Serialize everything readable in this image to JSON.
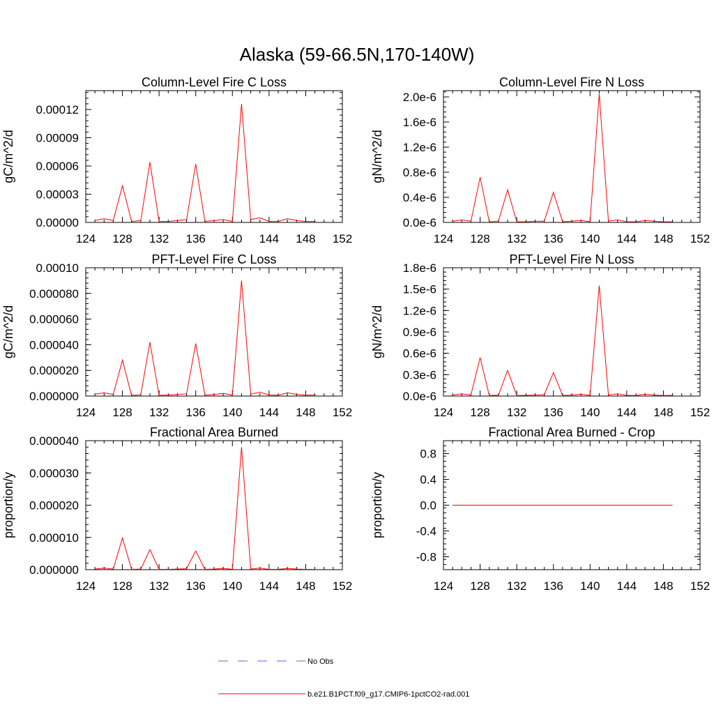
{
  "title": "Alaska (59-66.5N,170-140W)",
  "colors": {
    "model": "#ff0000",
    "obs": "#6666cc",
    "axis": "#000000"
  },
  "legend": {
    "obs_label": "No Obs",
    "model_label": "b.e21.B1PCT.f09_g17.CMIP6-1pctCO2-rad.001"
  },
  "chart_data": [
    {
      "type": "line",
      "title": "Column-Level Fire C Loss",
      "ylabel": "gC/m^2/d",
      "xlim": [
        124,
        152
      ],
      "ylim": [
        0,
        0.00014
      ],
      "x_ticks": [
        "124",
        "128",
        "132",
        "136",
        "140",
        "144",
        "148",
        "152"
      ],
      "y_ticks": [
        {
          "value": 0.0,
          "label": "0.00000"
        },
        {
          "value": 3e-05,
          "label": "0.00003"
        },
        {
          "value": 6e-05,
          "label": "0.00006"
        },
        {
          "value": 9e-05,
          "label": "0.00009"
        },
        {
          "value": 0.00012,
          "label": "0.00012"
        }
      ],
      "series": [
        {
          "name": "b.e21.B1PCT.f09_g17.CMIP6-1pctCO2-rad.001",
          "x": [
            125,
            126,
            127,
            128,
            129,
            130,
            131,
            132,
            133,
            134,
            135,
            136,
            137,
            138,
            139,
            140,
            141,
            142,
            143,
            144,
            145,
            146,
            147,
            148,
            149
          ],
          "y": [
            2e-06,
            4e-06,
            2e-06,
            3.9e-05,
            1e-06,
            2e-06,
            6.4e-05,
            1e-06,
            1e-06,
            2e-06,
            3e-06,
            6.2e-05,
            1e-06,
            2e-06,
            3e-06,
            1e-06,
            0.000126,
            3e-06,
            5e-06,
            1e-06,
            1e-06,
            4e-06,
            2e-06,
            1e-06,
            1e-06
          ]
        }
      ]
    },
    {
      "type": "line",
      "title": "Column-Level Fire N Loss",
      "ylabel": "gN/m^2/d",
      "xlim": [
        124,
        152
      ],
      "ylim": [
        0,
        2.1e-06
      ],
      "x_ticks": [
        "124",
        "128",
        "132",
        "136",
        "140",
        "144",
        "148",
        "152"
      ],
      "y_ticks": [
        {
          "value": 0.0,
          "label": "0.0e-6"
        },
        {
          "value": 4e-07,
          "label": "0.4e-6"
        },
        {
          "value": 8e-07,
          "label": "0.8e-6"
        },
        {
          "value": 1.2e-06,
          "label": "1.2e-6"
        },
        {
          "value": 1.6e-06,
          "label": "1.6e-6"
        },
        {
          "value": 2e-06,
          "label": "2.0e-6"
        }
      ],
      "series": [
        {
          "name": "b.e21.B1PCT.f09_g17.CMIP6-1pctCO2-rad.001",
          "x": [
            125,
            126,
            127,
            128,
            129,
            130,
            131,
            132,
            133,
            134,
            135,
            136,
            137,
            138,
            139,
            140,
            141,
            142,
            143,
            144,
            145,
            146,
            147,
            148,
            149
          ],
          "y": [
            2e-08,
            4e-08,
            2e-08,
            7.2e-07,
            1e-08,
            2e-08,
            5.2e-07,
            1e-08,
            1e-08,
            2e-08,
            2e-08,
            4.8e-07,
            1e-08,
            2e-08,
            3e-08,
            1e-08,
            2.05e-06,
            2e-08,
            4e-08,
            1e-08,
            1e-08,
            3e-08,
            2e-08,
            1e-08,
            1e-08
          ]
        }
      ]
    },
    {
      "type": "line",
      "title": "PFT-Level Fire C Loss",
      "ylabel": "gC/m^2/d",
      "xlim": [
        124,
        152
      ],
      "ylim": [
        0,
        0.0001
      ],
      "x_ticks": [
        "124",
        "128",
        "132",
        "136",
        "140",
        "144",
        "148",
        "152"
      ],
      "y_ticks": [
        {
          "value": 0.0,
          "label": "0.000000"
        },
        {
          "value": 2e-05,
          "label": "0.000020"
        },
        {
          "value": 4e-05,
          "label": "0.000040"
        },
        {
          "value": 6e-05,
          "label": "0.000060"
        },
        {
          "value": 8e-05,
          "label": "0.000080"
        },
        {
          "value": 0.0001,
          "label": "0.00010"
        }
      ],
      "series": [
        {
          "name": "b.e21.B1PCT.f09_g17.CMIP6-1pctCO2-rad.001",
          "x": [
            125,
            126,
            127,
            128,
            129,
            130,
            131,
            132,
            133,
            134,
            135,
            136,
            137,
            138,
            139,
            140,
            141,
            142,
            143,
            144,
            145,
            146,
            147,
            148,
            149
          ],
          "y": [
            1.5e-06,
            2.5e-06,
            1.2e-06,
            2.8e-05,
            5e-07,
            1e-06,
            4.2e-05,
            6e-07,
            8e-07,
            1.2e-06,
            1.8e-06,
            4.1e-05,
            7e-07,
            1.2e-06,
            2e-06,
            8e-07,
            9e-05,
            1.5e-06,
            3e-06,
            8e-07,
            6e-07,
            2.5e-06,
            1.3e-06,
            7e-07,
            8e-07
          ]
        }
      ]
    },
    {
      "type": "line",
      "title": "PFT-Level Fire N Loss",
      "ylabel": "gN/m^2/d",
      "xlim": [
        124,
        152
      ],
      "ylim": [
        0,
        1.8e-06
      ],
      "x_ticks": [
        "124",
        "128",
        "132",
        "136",
        "140",
        "144",
        "148",
        "152"
      ],
      "y_ticks": [
        {
          "value": 0.0,
          "label": "0.0e-6"
        },
        {
          "value": 3e-07,
          "label": "0.3e-6"
        },
        {
          "value": 6e-07,
          "label": "0.6e-6"
        },
        {
          "value": 9e-07,
          "label": "0.9e-6"
        },
        {
          "value": 1.2e-06,
          "label": "1.2e-6"
        },
        {
          "value": 1.5e-06,
          "label": "1.5e-6"
        },
        {
          "value": 1.8e-06,
          "label": "1.8e-6"
        }
      ],
      "series": [
        {
          "name": "b.e21.B1PCT.f09_g17.CMIP6-1pctCO2-rad.001",
          "x": [
            125,
            126,
            127,
            128,
            129,
            130,
            131,
            132,
            133,
            134,
            135,
            136,
            137,
            138,
            139,
            140,
            141,
            142,
            143,
            144,
            145,
            146,
            147,
            148,
            149
          ],
          "y": [
            1.5e-08,
            3e-08,
            1.5e-08,
            5.4e-07,
            8e-09,
            1.2e-08,
            3.6e-07,
            8e-09,
            1e-08,
            1.5e-08,
            2e-08,
            3.3e-07,
            8e-09,
            1.5e-08,
            2.5e-08,
            1e-08,
            1.55e-06,
            1.5e-08,
            3e-08,
            1e-08,
            8e-09,
            2.5e-08,
            1.5e-08,
            8e-09,
            1e-08
          ]
        }
      ]
    },
    {
      "type": "line",
      "title": "Fractional Area Burned",
      "ylabel": "proportion/y",
      "xlim": [
        124,
        152
      ],
      "ylim": [
        0,
        4e-05
      ],
      "x_ticks": [
        "124",
        "128",
        "132",
        "136",
        "140",
        "144",
        "148",
        "152"
      ],
      "y_ticks": [
        {
          "value": 0.0,
          "label": "0.000000"
        },
        {
          "value": 1e-05,
          "label": "0.000010"
        },
        {
          "value": 2e-05,
          "label": "0.000020"
        },
        {
          "value": 3e-05,
          "label": "0.000030"
        },
        {
          "value": 4e-05,
          "label": "0.000040"
        }
      ],
      "series": [
        {
          "name": "b.e21.B1PCT.f09_g17.CMIP6-1pctCO2-rad.001",
          "x": [
            125,
            126,
            127,
            128,
            129,
            130,
            131,
            132,
            133,
            134,
            135,
            136,
            137,
            138,
            139,
            140,
            141,
            142,
            143,
            144,
            145,
            146,
            147,
            148,
            149
          ],
          "y": [
            2e-07,
            5e-07,
            2e-07,
            9.8e-06,
            1e-07,
            2e-07,
            6.2e-06,
            1e-07,
            1e-07,
            2e-07,
            3e-07,
            5.8e-06,
            1e-07,
            2e-07,
            4e-07,
            1e-07,
            3.8e-05,
            2e-07,
            5e-07,
            1e-07,
            1e-07,
            4e-07,
            2e-07,
            1e-07,
            1e-07
          ]
        }
      ]
    },
    {
      "type": "line",
      "title": "Fractional Area Burned - Crop",
      "ylabel": "proportion/y",
      "xlim": [
        124,
        152
      ],
      "ylim": [
        -1.0,
        1.0
      ],
      "x_ticks": [
        "124",
        "128",
        "132",
        "136",
        "140",
        "144",
        "148",
        "152"
      ],
      "y_ticks": [
        {
          "value": -0.8,
          "label": "-0.8"
        },
        {
          "value": -0.4,
          "label": "-0.4"
        },
        {
          "value": 0.0,
          "label": "0.0"
        },
        {
          "value": 0.4,
          "label": "0.4"
        },
        {
          "value": 0.8,
          "label": "0.8"
        }
      ],
      "series": [
        {
          "name": "b.e21.B1PCT.f09_g17.CMIP6-1pctCO2-rad.001",
          "x": [
            125,
            149
          ],
          "y": [
            0.0,
            0.0
          ]
        }
      ]
    }
  ]
}
